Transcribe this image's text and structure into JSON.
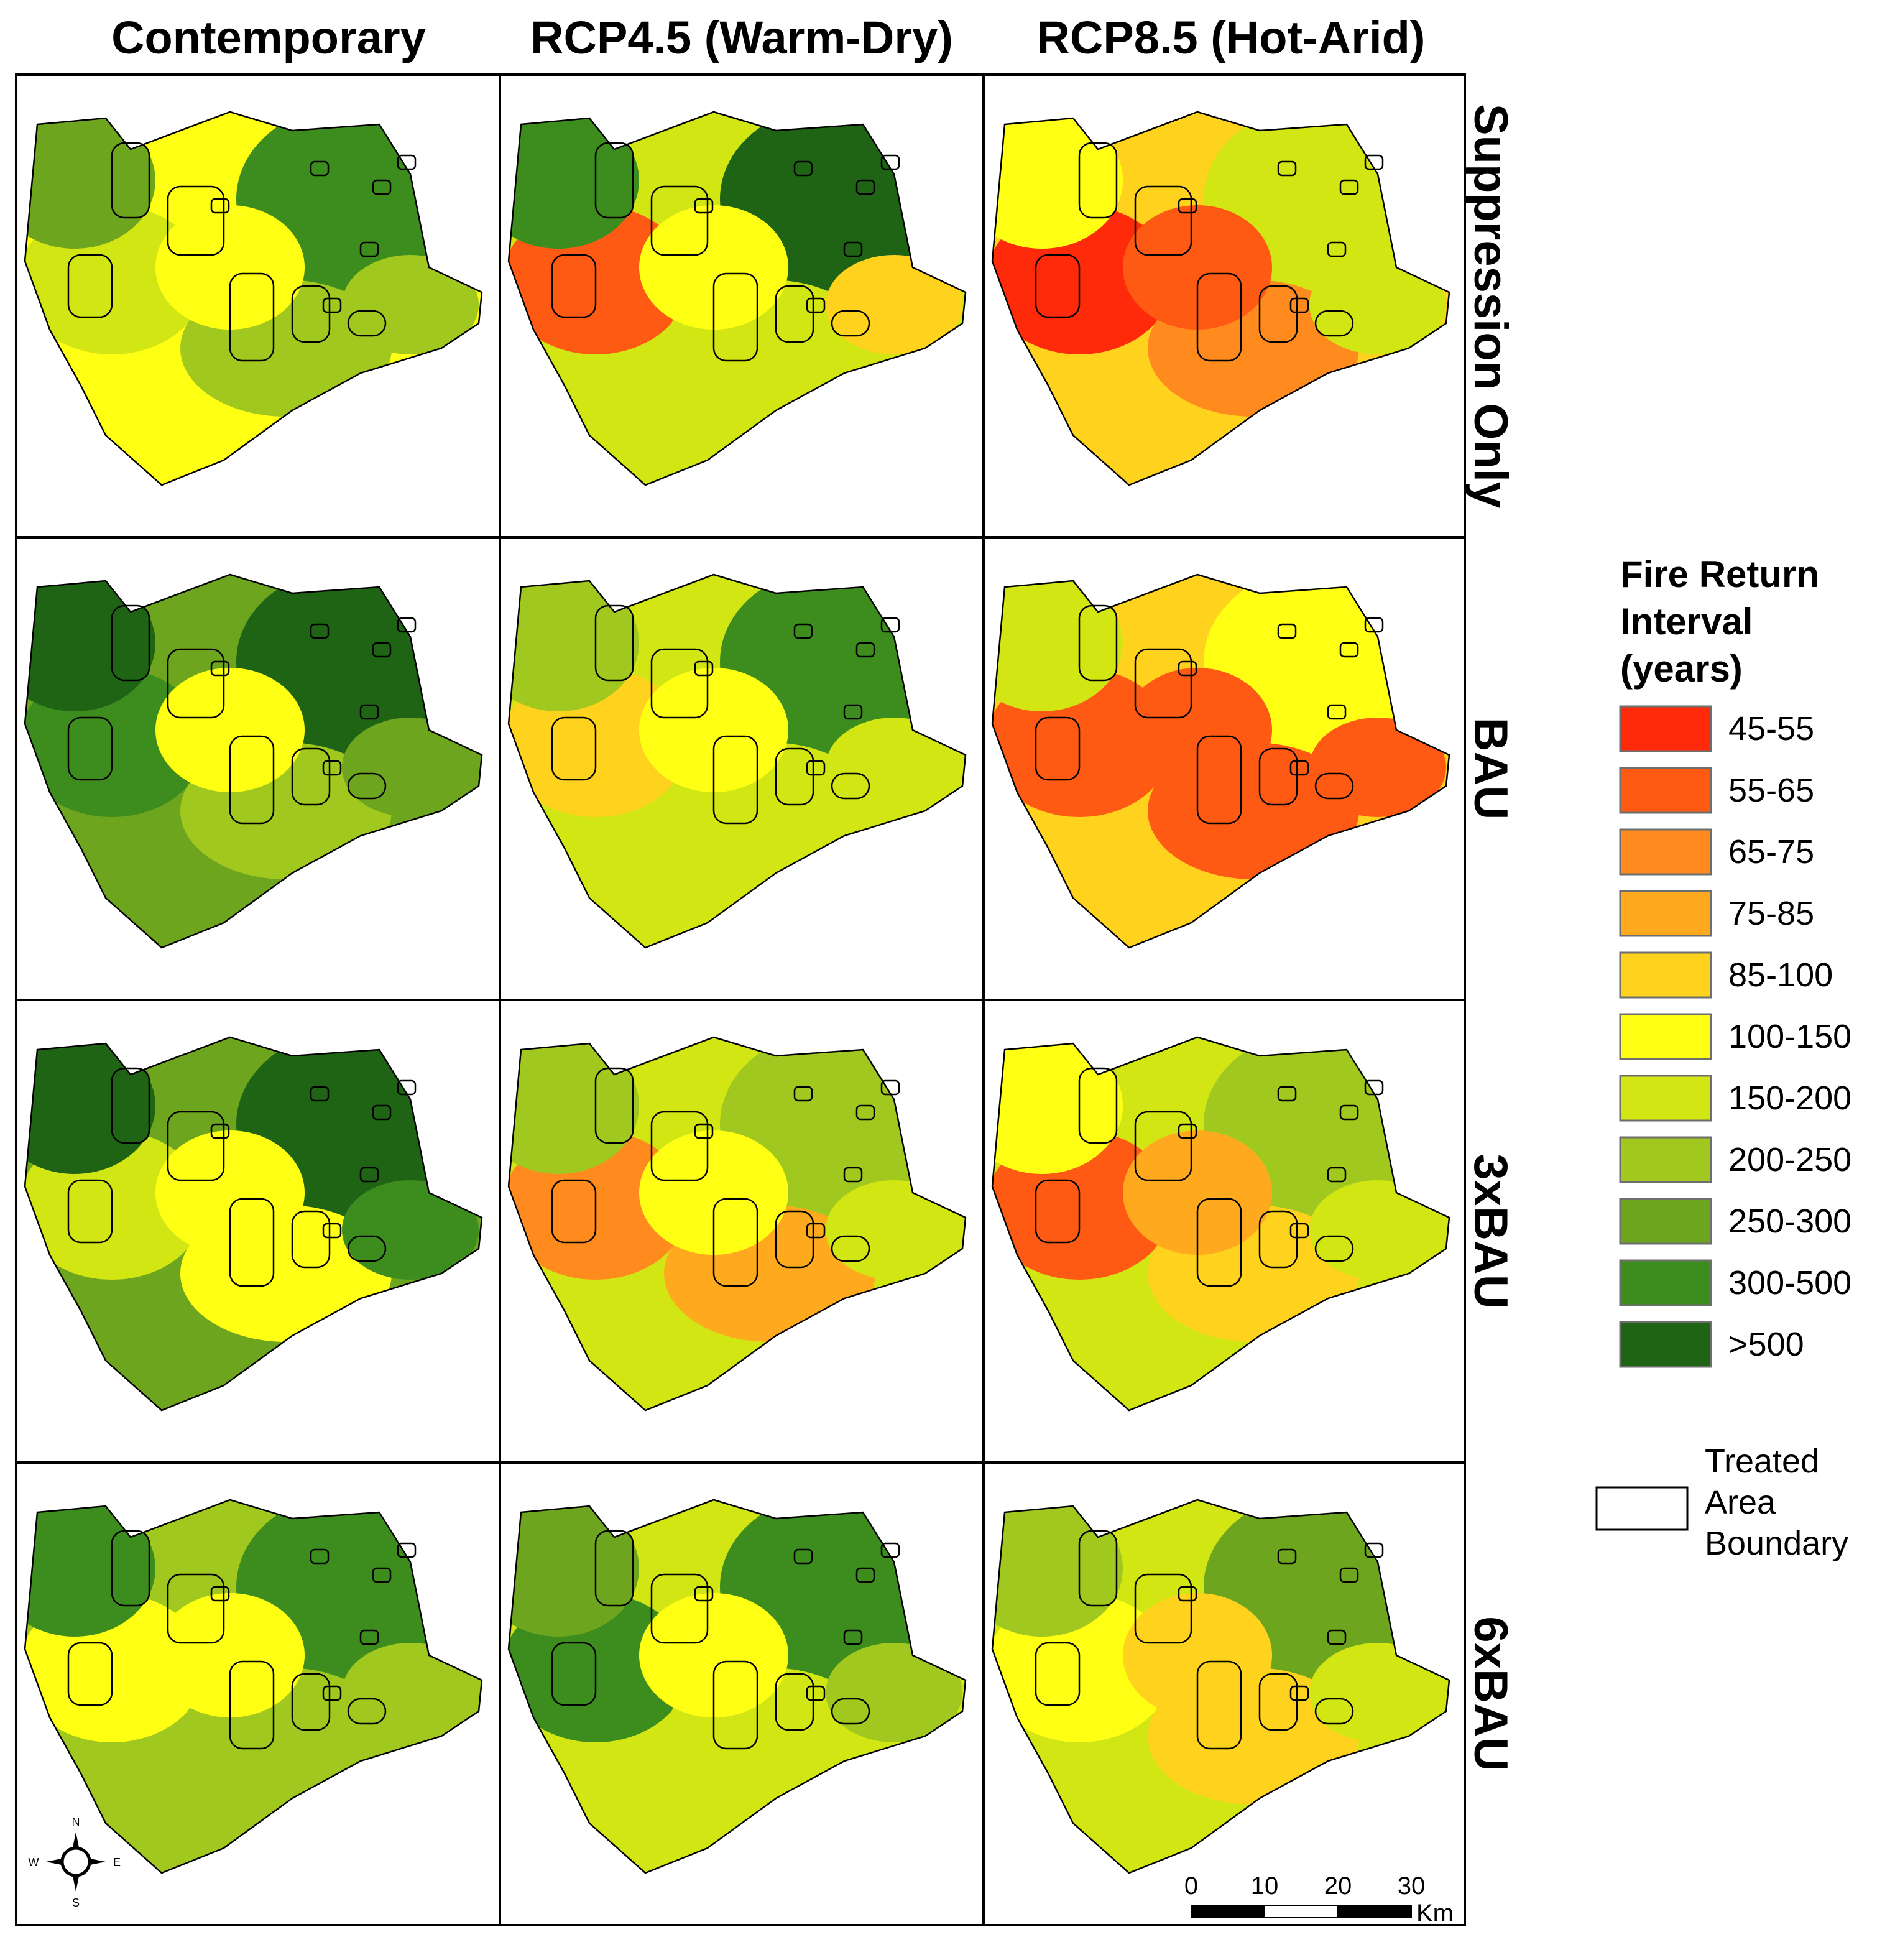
{
  "columns": [
    "Contemporary",
    "RCP4.5 (Warm-Dry)",
    "RCP8.5 (Hot-Arid)"
  ],
  "rows": [
    "Suppression Only",
    "BAU",
    "3xBAU",
    "6xBAU"
  ],
  "legend": {
    "title_lines": [
      "Fire Return",
      "Interval",
      "(years)"
    ],
    "classes": [
      {
        "label": "45-55",
        "color": "#ff2a0a"
      },
      {
        "label": "55-65",
        "color": "#ff5a14"
      },
      {
        "label": "65-75",
        "color": "#ff8a1e"
      },
      {
        "label": "75-85",
        "color": "#ffaa1e"
      },
      {
        "label": "85-100",
        "color": "#ffd21e"
      },
      {
        "label": "100-150",
        "color": "#ffff14"
      },
      {
        "label": "150-200",
        "color": "#d2e614"
      },
      {
        "label": "200-250",
        "color": "#a0c81e"
      },
      {
        "label": "250-300",
        "color": "#6ea51e"
      },
      {
        "label": "300-500",
        "color": "#3c8c1e"
      },
      {
        "label": ">500",
        "color": "#1e6414"
      }
    ],
    "treated_lines": [
      "Treated",
      "Area",
      "Boundary"
    ]
  },
  "panels": [
    [
      "100-150",
      "150-200",
      "250-300",
      "300-500",
      "200-250",
      "100-150",
      "200-250"
    ],
    [
      "150-200",
      "55-65",
      "300-500",
      ">500",
      "150-200",
      "100-150",
      "85-100"
    ],
    [
      "85-100",
      "45-55",
      "100-150",
      "150-200",
      "65-75",
      "55-65",
      "150-200"
    ],
    [
      "250-300",
      "300-500",
      ">500",
      ">500",
      "200-250",
      "100-150",
      "250-300"
    ],
    [
      "150-200",
      "85-100",
      "200-250",
      "300-500",
      "150-200",
      "100-150",
      "150-200"
    ],
    [
      "85-100",
      "55-65",
      "150-200",
      "100-150",
      "55-65",
      "55-65",
      "55-65"
    ],
    [
      "250-300",
      "150-200",
      ">500",
      ">500",
      "100-150",
      "100-150",
      "300-500"
    ],
    [
      "150-200",
      "65-75",
      "200-250",
      "200-250",
      "75-85",
      "100-150",
      "150-200"
    ],
    [
      "150-200",
      "55-65",
      "100-150",
      "200-250",
      "85-100",
      "75-85",
      "150-200"
    ],
    [
      "200-250",
      "100-150",
      "300-500",
      "300-500",
      "200-250",
      "100-150",
      "200-250"
    ],
    [
      "150-200",
      "300-500",
      "250-300",
      "300-500",
      "150-200",
      "100-150",
      "200-250"
    ],
    [
      "150-200",
      "100-150",
      "200-250",
      "250-300",
      "85-100",
      "85-100",
      "150-200"
    ]
  ],
  "scalebar": {
    "ticks": [
      "0",
      "10",
      "20",
      "30"
    ],
    "unit": "Km"
  },
  "compass": {
    "n": "N",
    "s": "S",
    "e": "E",
    "w": "W"
  }
}
